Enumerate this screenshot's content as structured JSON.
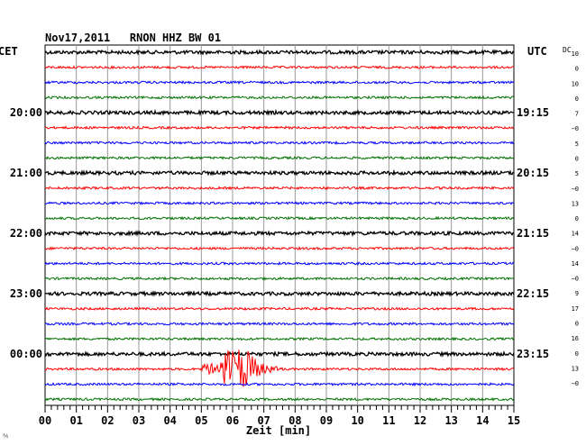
{
  "header": {
    "date": "Nov17,2011",
    "station": "RNON HHZ BW 01",
    "left_zone": "CET",
    "right_zone": "UTC",
    "dc_label": "DC"
  },
  "chart_data": {
    "type": "line",
    "title": "Nov17,2011   RNON HHZ BW 01",
    "xlabel": "Zeit [min]",
    "x_range": [
      0,
      15
    ],
    "x_ticks": [
      "00",
      "01",
      "02",
      "03",
      "04",
      "05",
      "06",
      "07",
      "08",
      "09",
      "10",
      "11",
      "12",
      "13",
      "14",
      "15"
    ],
    "trace_colors": [
      "#000000",
      "#ff0000",
      "#0000ff",
      "#007000"
    ],
    "left_time_labels": [
      "20:00",
      "21:00",
      "22:00",
      "23:00",
      "00:00"
    ],
    "right_time_labels": [
      "19:15",
      "20:15",
      "21:15",
      "22:15",
      "23:15"
    ],
    "dc_offsets": [
      "10",
      "0",
      "10",
      "0",
      "7",
      "−0",
      "5",
      "0",
      "5",
      "−0",
      "13",
      "0",
      "14",
      "−0",
      "14",
      "−0",
      "9",
      "17",
      "0",
      "16",
      "0",
      "13",
      "−0"
    ],
    "event": {
      "trace_index": 21,
      "start_min": 5.0,
      "peak_min": 6.1,
      "end_min": 7.6,
      "description": "earthquake signal"
    },
    "grid": true
  },
  "footer": {
    "corner_mark": "⅍"
  }
}
